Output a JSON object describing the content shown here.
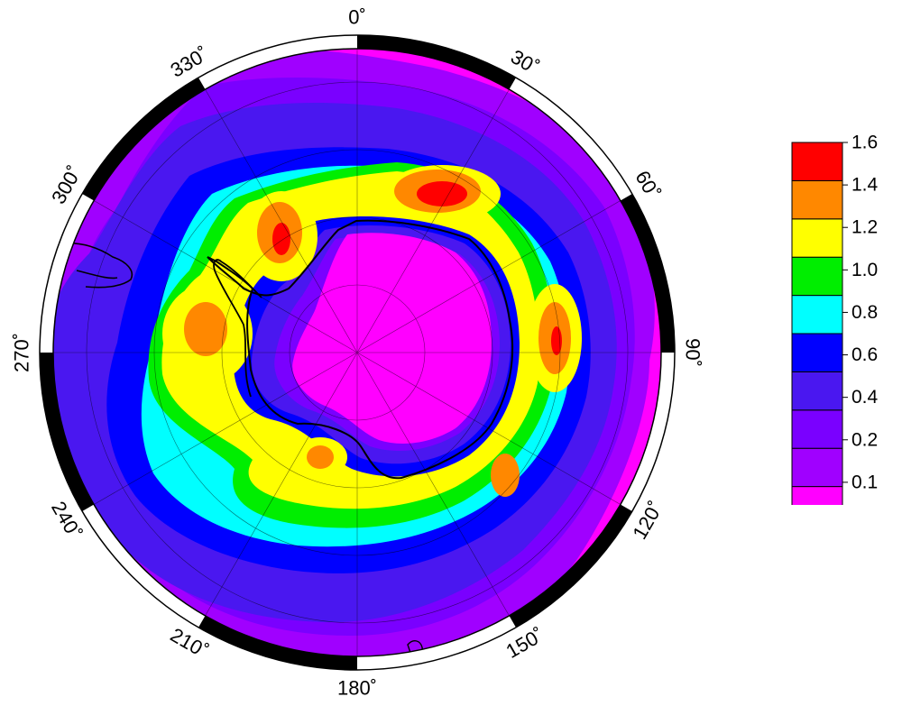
{
  "map": {
    "projection": "south polar stereographic",
    "longitude_labels": [
      {
        "lon": 0,
        "text": "0˚"
      },
      {
        "lon": 30,
        "text": "30˚"
      },
      {
        "lon": 60,
        "text": "60˚"
      },
      {
        "lon": 90,
        "text": "90˚"
      },
      {
        "lon": 120,
        "text": "120˚"
      },
      {
        "lon": 150,
        "text": "150˚"
      },
      {
        "lon": 180,
        "text": "180˚"
      },
      {
        "lon": 210,
        "text": "210˚"
      },
      {
        "lon": 240,
        "text": "240˚"
      },
      {
        "lon": 270,
        "text": "270˚"
      },
      {
        "lon": 300,
        "text": "300˚"
      },
      {
        "lon": 330,
        "text": "330˚"
      }
    ],
    "frame": "alternating black/white 30-degree border",
    "coastlines": "Antarctica, South America tip, Antarctic Peninsula"
  },
  "colorbar": {
    "levels": [
      "0.0",
      "0.1",
      "0.2",
      "0.4",
      "0.6",
      "0.8",
      "1.0",
      "1.2",
      "1.4",
      "1.6"
    ],
    "colors": [
      "#ff00ff",
      "#a000ff",
      "#7a00ff",
      "#4a17f0",
      "#0000ff",
      "#00ffff",
      "#00ee00",
      "#ffff00",
      "#ff8800",
      "#ff0000"
    ]
  }
}
